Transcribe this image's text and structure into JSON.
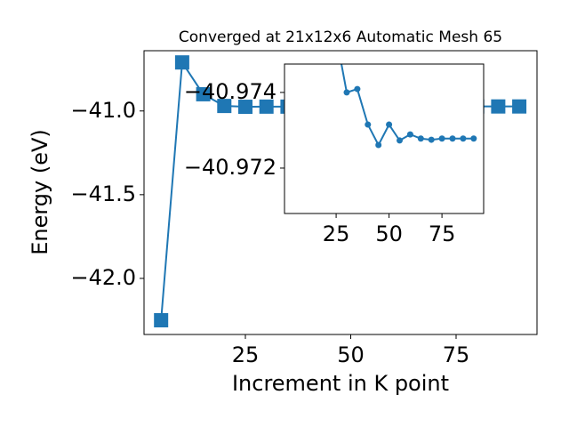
{
  "chart_data": [
    {
      "type": "line",
      "title": "Converged at 21x12x6 Automatic Mesh 65",
      "xlabel": "Increment in K point",
      "ylabel": "Energy (eV)",
      "x": [
        5,
        10,
        15,
        20,
        25,
        30,
        35,
        40,
        45,
        50,
        55,
        60,
        65,
        70,
        75,
        80,
        85,
        90
      ],
      "series": [
        {
          "color": "#1f77b4",
          "values": [
            -42.25,
            -40.71,
            -40.9,
            -40.97,
            -40.975,
            -40.974,
            -40.974,
            -40.973,
            -40.973,
            -40.973,
            -40.973,
            -40.973,
            -40.973,
            -40.973,
            -40.973,
            -40.973,
            -40.973,
            -40.973
          ]
        }
      ],
      "xlim": [
        0.95,
        94.2
      ],
      "ylim": [
        -42.335,
        -40.64
      ],
      "xticks": [
        25,
        50,
        75
      ],
      "yticks": [
        {
          "value": -41.0,
          "label": "−41.0"
        },
        {
          "value": -41.5,
          "label": "−41.5"
        },
        {
          "value": -42.0,
          "label": "−42.0"
        }
      ]
    },
    {
      "type": "line",
      "x": [
        25,
        30,
        35,
        40,
        45,
        50,
        55,
        60,
        65,
        70,
        75,
        80,
        85,
        90
      ],
      "series": [
        {
          "color": "#1f77b4",
          "values": [
            -40.9755,
            -40.974,
            -40.97409,
            -40.97315,
            -40.97261,
            -40.97315,
            -40.97273,
            -40.97289,
            -40.97278,
            -40.97275,
            -40.97278,
            -40.97278,
            -40.97278,
            -40.97278
          ]
        }
      ],
      "xlim": [
        0.6,
        94.7
      ],
      "ylim": [
        -40.9708,
        -40.97475
      ],
      "xticks": [
        25,
        50,
        75
      ],
      "yticks": [
        {
          "value": -40.974,
          "label": "−40.974"
        },
        {
          "value": -40.972,
          "label": "−40.972"
        }
      ]
    }
  ]
}
